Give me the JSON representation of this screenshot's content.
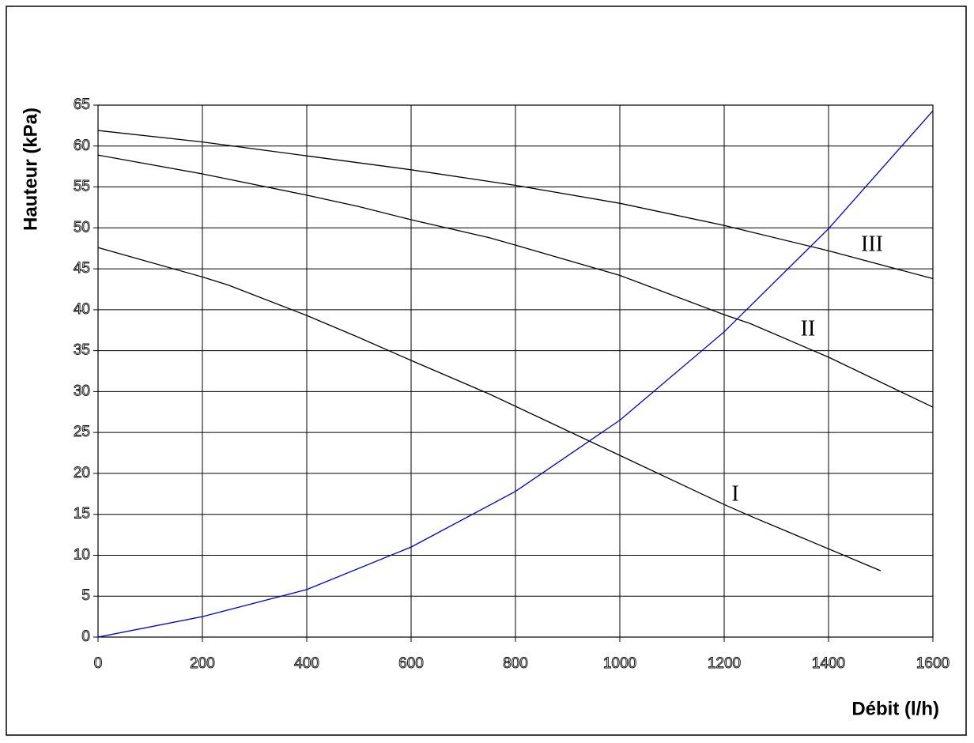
{
  "chart_data": {
    "type": "line",
    "x_label": "Débit (l/h)",
    "y_label": "Hauteur (kPa)",
    "xlim": [
      0,
      1600
    ],
    "ylim": [
      0,
      65
    ],
    "xticks": [
      0,
      200,
      400,
      600,
      800,
      1000,
      1200,
      1400,
      1600
    ],
    "yticks": [
      0,
      5,
      10,
      15,
      20,
      25,
      30,
      35,
      40,
      45,
      50,
      55,
      60,
      65
    ],
    "grid": true,
    "series": [
      {
        "name": "I",
        "color": "#000000",
        "x": [
          0,
          200,
          250,
          400,
          500,
          600,
          750,
          800,
          1000,
          1200,
          1250,
          1500
        ],
        "values": [
          47.6,
          44,
          43,
          39.3,
          36.6,
          33.8,
          29.7,
          28.2,
          22.2,
          16.2,
          14.8,
          8.1
        ]
      },
      {
        "name": "II",
        "color": "#000000",
        "x": [
          0,
          200,
          400,
          500,
          600,
          750,
          800,
          1000,
          1200,
          1250,
          1400,
          1600
        ],
        "values": [
          58.9,
          56.6,
          54,
          52.6,
          51,
          48.8,
          47.9,
          44.2,
          39.4,
          38.3,
          34.2,
          28.1
        ]
      },
      {
        "name": "III",
        "color": "#000000",
        "x": [
          0,
          200,
          400,
          600,
          800,
          1000,
          1200,
          1400,
          1600
        ],
        "values": [
          61.9,
          60.5,
          58.8,
          57.1,
          55.2,
          53,
          50.3,
          47.2,
          43.8
        ]
      },
      {
        "color": "#0000cc",
        "x": [
          0,
          200,
          400,
          600,
          800,
          1000,
          1200,
          1400,
          1600
        ],
        "values": [
          0,
          2.5,
          5.8,
          11,
          17.8,
          26.5,
          37.3,
          49.9,
          64.3
        ]
      }
    ]
  }
}
